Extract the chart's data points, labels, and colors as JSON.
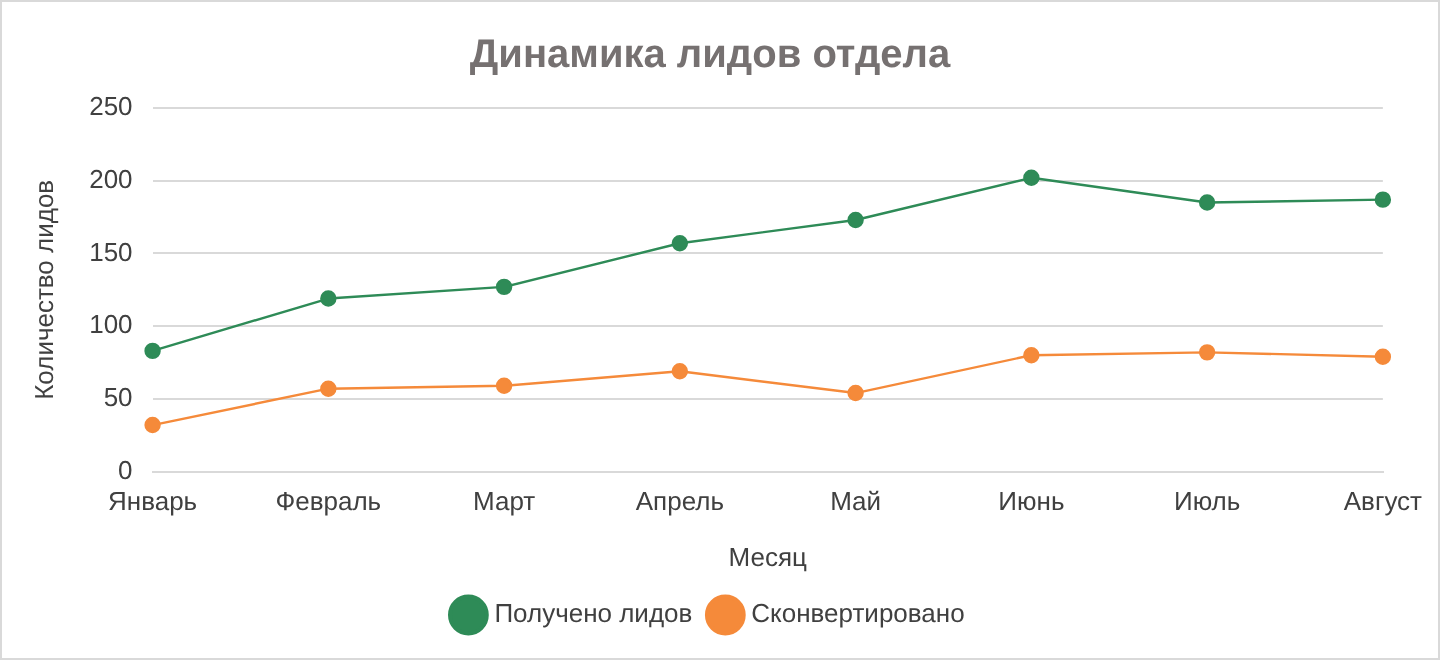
{
  "chart_data": {
    "type": "line",
    "title": "Динамика лидов отдела",
    "xlabel": "Месяц",
    "ylabel": "Количество лидов",
    "categories": [
      "Январь",
      "Февраль",
      "Март",
      "Апрель",
      "Май",
      "Июнь",
      "Июль",
      "Август"
    ],
    "series": [
      {
        "name": "Получено лидов",
        "color": "#2e8b57",
        "values": [
          83,
          119,
          127,
          157,
          173,
          202,
          185,
          187
        ]
      },
      {
        "name": "Сконвертировано",
        "color": "#f58a3a",
        "values": [
          32,
          57,
          59,
          69,
          54,
          80,
          82,
          79
        ]
      }
    ],
    "ylim": [
      0,
      250
    ],
    "yticks": [
      0,
      50,
      100,
      150,
      200,
      250
    ],
    "grid": "y",
    "legend": "bottom",
    "marker": "circle",
    "line_style": "solid"
  }
}
